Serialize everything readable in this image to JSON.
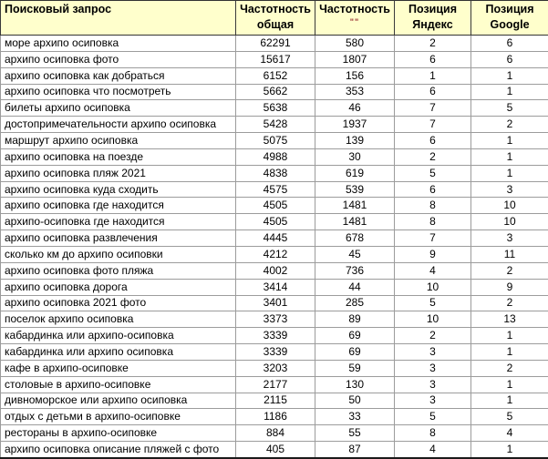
{
  "colors": {
    "header_bg": "#FFFFCC",
    "grid_line": "#9C9C9C",
    "header_border": "#333333",
    "quotes_accent": "#993333",
    "cell_bg": "#FFFFFF"
  },
  "table": {
    "columns": [
      {
        "key": "query",
        "line1": "Поисковый запрос",
        "line2": ""
      },
      {
        "key": "freq_total",
        "line1": "Частотность",
        "line2": "общая"
      },
      {
        "key": "freq_quoted",
        "line1": "Частотность",
        "line2": "\"\""
      },
      {
        "key": "pos_yandex",
        "line1": "Позиция",
        "line2": "Яндекс"
      },
      {
        "key": "pos_google",
        "line1": "Позиция",
        "line2": "Google"
      }
    ],
    "rows": [
      [
        "море архипо осиповка",
        "62291",
        "580",
        "2",
        "6"
      ],
      [
        "архипо осиповка фото",
        "15617",
        "1807",
        "6",
        "6"
      ],
      [
        "архипо осиповка как добраться",
        "6152",
        "156",
        "1",
        "1"
      ],
      [
        "архипо осиповка что посмотреть",
        "5662",
        "353",
        "6",
        "1"
      ],
      [
        "билеты архипо осиповка",
        "5638",
        "46",
        "7",
        "5"
      ],
      [
        "достопримечательности архипо осиповка",
        "5428",
        "1937",
        "7",
        "2"
      ],
      [
        "маршрут архипо осиповка",
        "5075",
        "139",
        "6",
        "1"
      ],
      [
        "архипо осиповка на поезде",
        "4988",
        "30",
        "2",
        "1"
      ],
      [
        "архипо осиповка пляж 2021",
        "4838",
        "619",
        "5",
        "1"
      ],
      [
        "архипо осиповка куда сходить",
        "4575",
        "539",
        "6",
        "3"
      ],
      [
        "архипо осиповка где находится",
        "4505",
        "1481",
        "8",
        "10"
      ],
      [
        "архипо-осиповка где находится",
        "4505",
        "1481",
        "8",
        "10"
      ],
      [
        "архипо осиповка развлечения",
        "4445",
        "678",
        "7",
        "3"
      ],
      [
        "сколько км до архипо осиповки",
        "4212",
        "45",
        "9",
        "11"
      ],
      [
        "архипо осиповка фото пляжа",
        "4002",
        "736",
        "4",
        "2"
      ],
      [
        "архипо осиповка дорога",
        "3414",
        "44",
        "10",
        "9"
      ],
      [
        "архипо осиповка 2021 фото",
        "3401",
        "285",
        "5",
        "2"
      ],
      [
        "поселок архипо осиповка",
        "3373",
        "89",
        "10",
        "13"
      ],
      [
        "кабардинка или архипо-осиповка",
        "3339",
        "69",
        "2",
        "1"
      ],
      [
        "кабардинка или архипо осиповка",
        "3339",
        "69",
        "3",
        "1"
      ],
      [
        "кафе в архипо-осиповке",
        "3203",
        "59",
        "3",
        "2"
      ],
      [
        "столовые в архипо-осиповке",
        "2177",
        "130",
        "3",
        "1"
      ],
      [
        "дивноморское или архипо осиповка",
        "2115",
        "50",
        "3",
        "1"
      ],
      [
        "отдых с детьми в архипо-осиповке",
        "1186",
        "33",
        "5",
        "5"
      ],
      [
        "рестораны в архипо-осиповке",
        "884",
        "55",
        "8",
        "4"
      ],
      [
        "архипо осиповка описание пляжей с фото",
        "405",
        "87",
        "4",
        "1"
      ]
    ]
  }
}
